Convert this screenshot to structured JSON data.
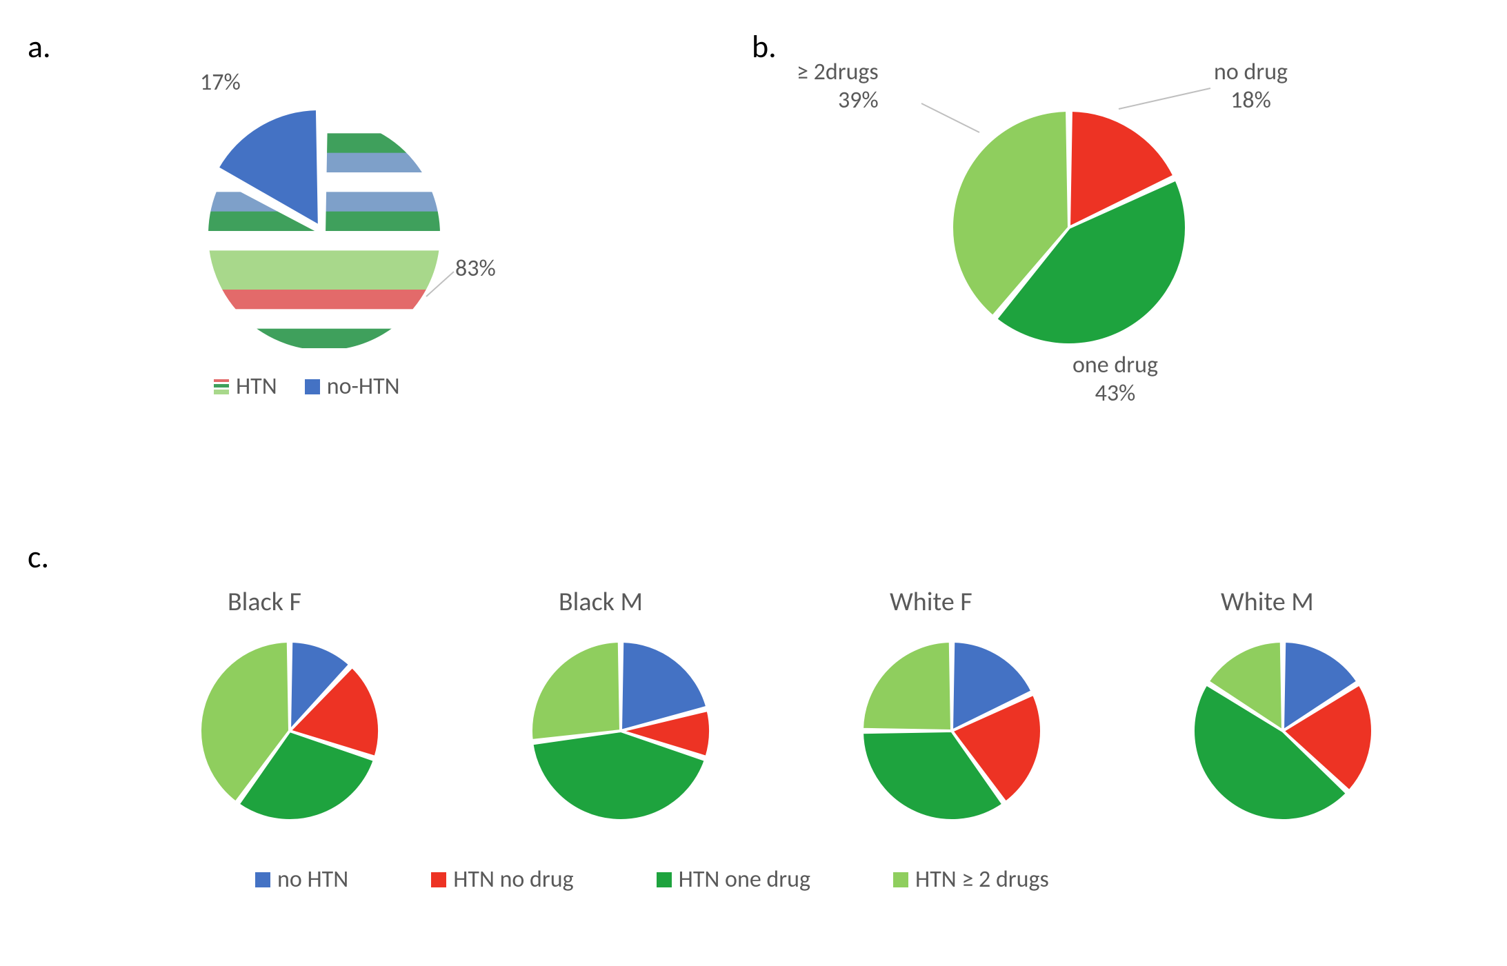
{
  "panels": {
    "a": {
      "label": "a."
    },
    "b": {
      "label": "b."
    },
    "c": {
      "label": "c."
    }
  },
  "colors": {
    "blue": "#4472c4",
    "red": "#ed3324",
    "green": "#1ea33e",
    "lightgreen": "#8fce5e",
    "white": "#ffffff",
    "stripe_red": "#e36a6a",
    "stripe_green": "#3fa05c",
    "stripe_blue": "#7ea0c9",
    "stripe_lg": "#a8d88b",
    "text": "#595959"
  },
  "chart_a": {
    "type": "pie",
    "radius": 170,
    "slice_gap_deg": 2,
    "slices": [
      {
        "name": "HTN",
        "value": 83,
        "fill": "pattern:stripes",
        "callout": "83%"
      },
      {
        "name": "no-HTN",
        "value": 17,
        "fill": "#4472c4",
        "explode": 14,
        "callout": "17%"
      }
    ],
    "legend": [
      {
        "swatch": "pattern:stripes-small",
        "label": "HTN"
      },
      {
        "swatch": "#4472c4",
        "label": "no-HTN"
      }
    ]
  },
  "chart_b": {
    "type": "pie",
    "radius": 170,
    "slice_gap_deg": 2,
    "slices": [
      {
        "name": "no drug",
        "value": 18,
        "fill": "#ed3324",
        "callout": "no drug\n18%"
      },
      {
        "name": "one drug",
        "value": 43,
        "fill": "#1ea33e",
        "callout": "one drug\n43%"
      },
      {
        "name": "≥ 2drugs",
        "value": 39,
        "fill": "#8fce5e",
        "callout": "≥ 2drugs\n39%",
        "leader": true
      }
    ]
  },
  "chart_c": {
    "type": "pie-smallmultiples",
    "radius": 130,
    "slice_gap_deg": 2,
    "series_colors": [
      "#4472c4",
      "#ed3324",
      "#1ea33e",
      "#8fce5e"
    ],
    "series_labels": [
      "no HTN",
      "HTN no drug",
      "HTN one drug",
      "HTN ≥ 2 drugs"
    ],
    "charts": [
      {
        "title": "Black F",
        "values": [
          12,
          18,
          30,
          40
        ]
      },
      {
        "title": "Black M",
        "values": [
          21,
          9,
          43,
          27
        ]
      },
      {
        "title": "White F",
        "values": [
          18,
          22,
          35,
          25
        ]
      },
      {
        "title": "White M",
        "values": [
          16,
          21,
          47,
          16
        ]
      }
    ]
  },
  "font": {
    "label_size_pt": 34,
    "panel_size_pt": 46,
    "subtitle_size_pt": 38
  }
}
